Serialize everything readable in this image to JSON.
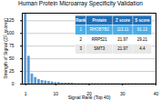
{
  "chart_data": {
    "type": "bar",
    "title": "Human Protein Microarray Specificity Validation",
    "xlabel": "Signal Rank (Top 40)",
    "ylabel": "Strength of Signal (ZF scores)",
    "x": [
      1,
      2,
      3,
      4,
      5,
      6,
      7,
      8,
      9,
      10,
      11,
      12,
      13,
      14,
      15,
      16,
      17,
      18,
      19,
      20,
      21,
      22,
      23,
      24,
      25,
      26,
      27,
      28,
      29,
      30,
      31,
      32,
      33,
      34,
      35,
      36,
      37,
      38,
      39,
      40
    ],
    "values": [
      140,
      55,
      20,
      13,
      9,
      7,
      6,
      5,
      4,
      3,
      3,
      2,
      2,
      2,
      2,
      1,
      1,
      1,
      1,
      1,
      1,
      1,
      1,
      1,
      1,
      1,
      1,
      1,
      1,
      1,
      1,
      1,
      1,
      1,
      1,
      1,
      1,
      1,
      1,
      1
    ],
    "color": "#5b9bd5",
    "xlim": [
      0,
      40
    ],
    "xticks": [
      1,
      10,
      20,
      30,
      40
    ],
    "ylim": [
      0,
      140
    ],
    "yticks": [
      0,
      25,
      50,
      75,
      100,
      125
    ],
    "grid": true,
    "table": {
      "header": [
        "Rank",
        "Protein",
        "Z score",
        "S score"
      ],
      "rows": [
        [
          "1",
          "RHOBTB2",
          "113.11",
          "91.13"
        ],
        [
          "2",
          "RRP521",
          "21.97",
          "29.21"
        ],
        [
          "3",
          "SMT3",
          "21.97",
          "4.4"
        ]
      ],
      "colors": [
        "#1f6eb5",
        "#4baee8",
        "#ffffff",
        "#e8e8e8"
      ]
    }
  }
}
